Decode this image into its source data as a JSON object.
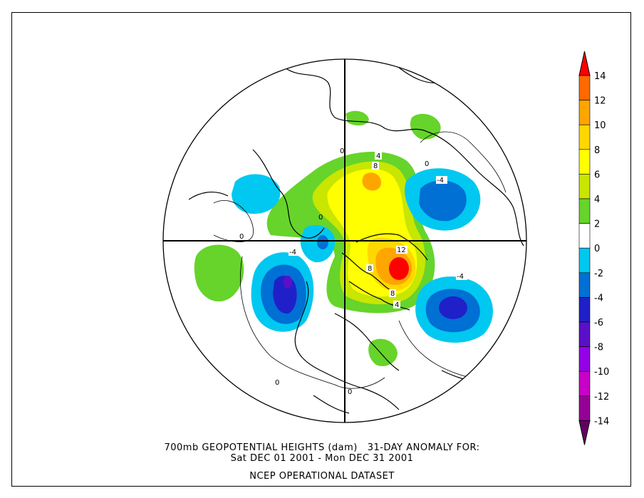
{
  "caption": {
    "line1": "700mb GEOPOTENTIAL HEIGHTS (dam)   31-DAY ANOMALY FOR:",
    "line2": "Sat DEC 01 2001 - Mon DEC 31 2001",
    "line3": "NCEP OPERATIONAL DATASET"
  },
  "colorbar": {
    "labels": [
      "14",
      "12",
      "10",
      "8",
      "6",
      "4",
      "2",
      "0",
      "-2",
      "-4",
      "-6",
      "-8",
      "-10",
      "-12",
      "-14"
    ],
    "colors": [
      "#ff0000",
      "#ff6a00",
      "#ffa500",
      "#ffd700",
      "#ffff00",
      "#c8e600",
      "#66d42b",
      "#ffffff",
      "#00c8f0",
      "#0070d4",
      "#2020c8",
      "#5a10c8",
      "#9600e6",
      "#c800c8",
      "#960096",
      "#640064"
    ]
  },
  "contour_labels": {
    "pos_4_top": "4",
    "pos_8_top": "8",
    "zero_a": "0",
    "zero_b": "0",
    "zero_c": "0",
    "zero_d": "0",
    "zero_e": "0",
    "zero_f": "0",
    "neg4_east": "-4",
    "neg4_west": "-4",
    "neg4_se": "-4",
    "pos12": "12",
    "pos8_a": "8",
    "pos8_b": "8",
    "pos4_bot": "4"
  }
}
